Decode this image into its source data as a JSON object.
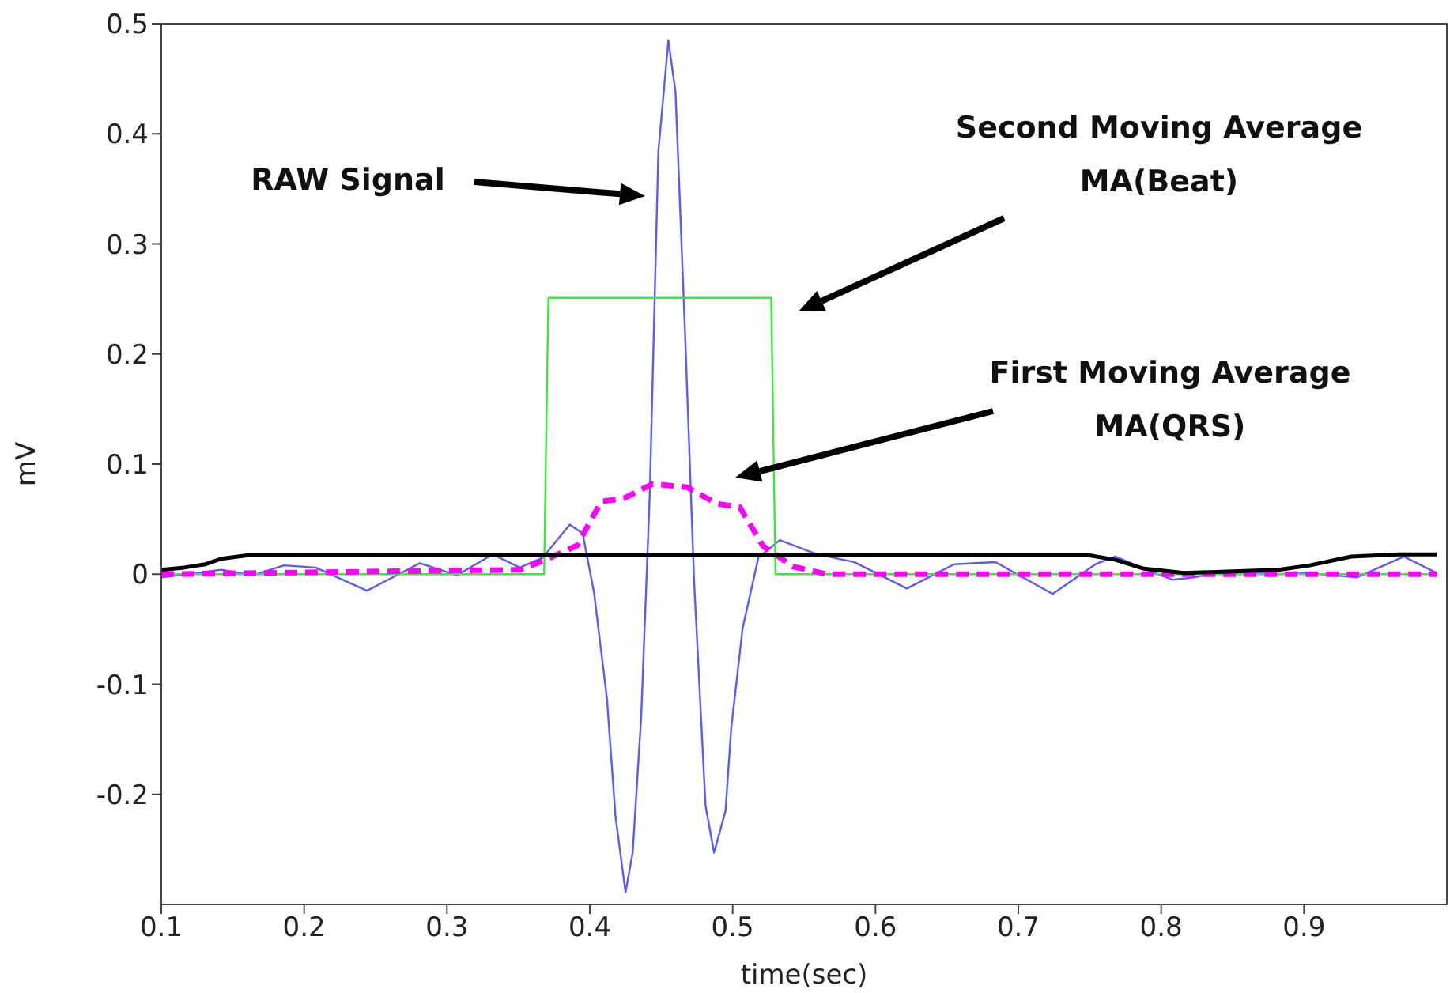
{
  "chart_data": {
    "type": "line",
    "xlabel": "time(sec)",
    "ylabel": "mV",
    "xlim": [
      0.1,
      1.0
    ],
    "xticks": [
      0.1,
      0.2,
      0.3,
      0.4,
      0.5,
      0.6,
      0.7,
      0.8,
      0.9
    ],
    "ylim": [
      -0.3,
      0.5
    ],
    "yticks": [
      -0.2,
      -0.1,
      0,
      0.1,
      0.2,
      0.3,
      0.4,
      0.5
    ],
    "marker": "none",
    "series": [
      {
        "color": "#5a5aff",
        "line_style": "solid",
        "x": [
          0.1,
          0.142,
          0.164,
          0.186,
          0.208,
          0.244,
          0.281,
          0.307,
          0.332,
          0.351,
          0.367,
          0.386,
          0.395,
          0.403,
          0.412,
          0.418,
          0.425,
          0.43,
          0.436,
          0.442,
          0.448,
          0.455,
          0.46,
          0.467,
          0.473,
          0.481,
          0.487,
          0.495,
          0.499,
          0.507,
          0.518,
          0.533,
          0.559,
          0.585,
          0.622,
          0.655,
          0.684,
          0.724,
          0.754,
          0.768,
          0.786,
          0.808,
          0.823,
          0.845,
          0.878,
          0.904,
          0.937,
          0.97,
          0.993
        ],
        "values": [
          -0.003,
          0.004,
          -0.001,
          0.008,
          0.006,
          -0.015,
          0.01,
          -0.001,
          0.018,
          0.006,
          0.015,
          0.045,
          0.037,
          -0.017,
          -0.113,
          -0.22,
          -0.289,
          -0.253,
          -0.129,
          0.074,
          0.384,
          0.485,
          0.438,
          0.208,
          -0.006,
          -0.21,
          -0.253,
          -0.215,
          -0.14,
          -0.049,
          0.015,
          0.031,
          0.018,
          0.011,
          -0.013,
          0.009,
          0.011,
          -0.018,
          0.009,
          0.016,
          0.006,
          -0.005,
          -0.003,
          0.003,
          0,
          0.001,
          -0.003,
          0.016,
          0.001
        ]
      },
      {
        "color": "#33ee33",
        "line_style": "solid",
        "x": [
          0.1,
          0.368,
          0.371,
          0.527,
          0.53,
          0.993
        ],
        "values": [
          0,
          0,
          0.251,
          0.251,
          0,
          0
        ]
      },
      {
        "color": "#ff00ff",
        "line_style": "dashed",
        "x": [
          0.1,
          0.351,
          0.369,
          0.391,
          0.408,
          0.424,
          0.444,
          0.468,
          0.489,
          0.505,
          0.521,
          0.542,
          0.566,
          0.993
        ],
        "values": [
          0,
          0.004,
          0.013,
          0.026,
          0.066,
          0.069,
          0.082,
          0.079,
          0.064,
          0.061,
          0.026,
          0.007,
          0,
          0
        ]
      },
      {
        "color": "#000000",
        "line_style": "solid",
        "x": [
          0.1,
          0.116,
          0.131,
          0.142,
          0.16,
          0.75,
          0.768,
          0.788,
          0.816,
          0.882,
          0.904,
          0.933,
          0.966,
          0.993
        ],
        "values": [
          0.004,
          0.006,
          0.009,
          0.014,
          0.017,
          0.017,
          0.013,
          0.005,
          0.001,
          0.004,
          0.008,
          0.016,
          0.018,
          0.018
        ]
      }
    ],
    "annotations": [
      "RAW Signal",
      "Second Moving Average\nMA(Beat)",
      "First Moving Average\nMA(QRS)"
    ]
  }
}
